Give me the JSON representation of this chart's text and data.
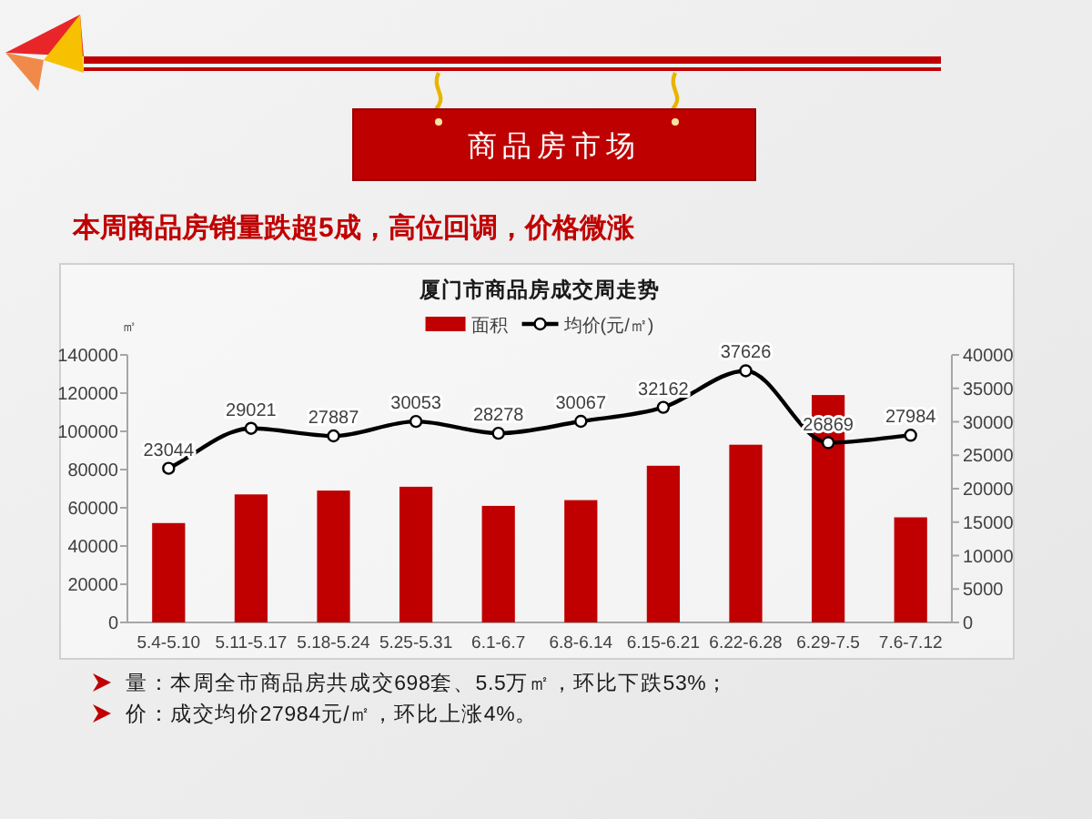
{
  "chart_data": {
    "type": "bar",
    "title": "厦门市商品房成交周走势",
    "ylabel": "㎡",
    "categories": [
      "5.4-5.10",
      "5.11-5.17",
      "5.18-5.24",
      "5.25-5.31",
      "6.1-6.7",
      "6.8-6.14",
      "6.15-6.21",
      "6.22-6.28",
      "6.29-7.5",
      "7.6-7.12"
    ],
    "series": [
      {
        "name": "面积",
        "color": "#c00000",
        "values": [
          52000,
          67000,
          69000,
          71000,
          61000,
          64000,
          82000,
          93000,
          119000,
          55000
        ]
      },
      {
        "name": "均价(元/㎡)",
        "type": "line",
        "axis": "y2",
        "color": "#000000",
        "marker": "circle",
        "values": [
          23044,
          29021,
          27887,
          30053,
          28278,
          30067,
          32162,
          37626,
          26869,
          27984
        ],
        "value_labels": [
          "23044",
          "29021",
          "27887",
          "30053",
          "28278",
          "30067",
          "32162",
          "37626",
          "26869",
          "27984"
        ]
      }
    ],
    "ylim": [
      0,
      140000
    ],
    "yticks": [
      0,
      20000,
      40000,
      60000,
      80000,
      100000,
      120000,
      140000
    ],
    "y2lim": [
      0,
      40000
    ],
    "y2ticks": [
      0,
      5000,
      10000,
      15000,
      20000,
      25000,
      30000,
      35000,
      40000
    ],
    "legend": "top",
    "grid": false,
    "annotations": [
      "商品房市场",
      "本周商品房销量跌超5成，高位回调，价格微涨",
      "量：本周全市商品房共成交698套、5.5万㎡，环比下跌53%；",
      "价：成交均价27984元/㎡，环比上涨4%。"
    ]
  }
}
